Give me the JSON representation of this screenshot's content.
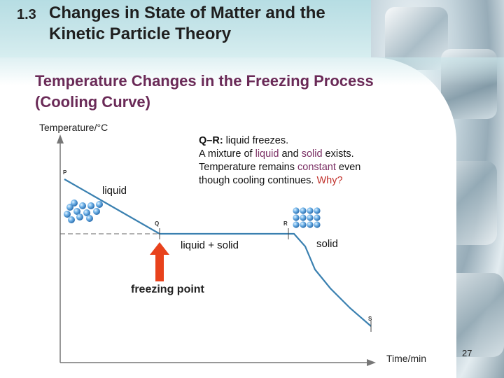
{
  "header": {
    "section_number": "1.3",
    "title": "Changes in State of Matter and the Kinetic Particle Theory"
  },
  "subtitle": "Temperature Changes in the Freezing Process (Cooling Curve)",
  "graph": {
    "y_axis_label": "Temperature/°C",
    "x_axis_label": "Time/min",
    "points": [
      "P",
      "Q",
      "R",
      "S"
    ],
    "region_labels": {
      "liquid": "liquid",
      "liquid_solid": "liquid + solid",
      "solid": "solid"
    },
    "freezing_point_label": "freezing point",
    "arrow_color": "#e8421c"
  },
  "note": {
    "heading": "Q–R:",
    "heading_rest": " liquid freezes.",
    "line2_a": "A mixture of ",
    "line2_w1": "liquid",
    "line2_b": " and ",
    "line2_w2": "solid",
    "line2_c": " exists.",
    "line3_a": "Temperature remains ",
    "line3_w": "constant",
    "line3_b": " even",
    "line4_a": "though cooling continues. ",
    "line4_q": "Why?"
  },
  "page_number": "27"
}
